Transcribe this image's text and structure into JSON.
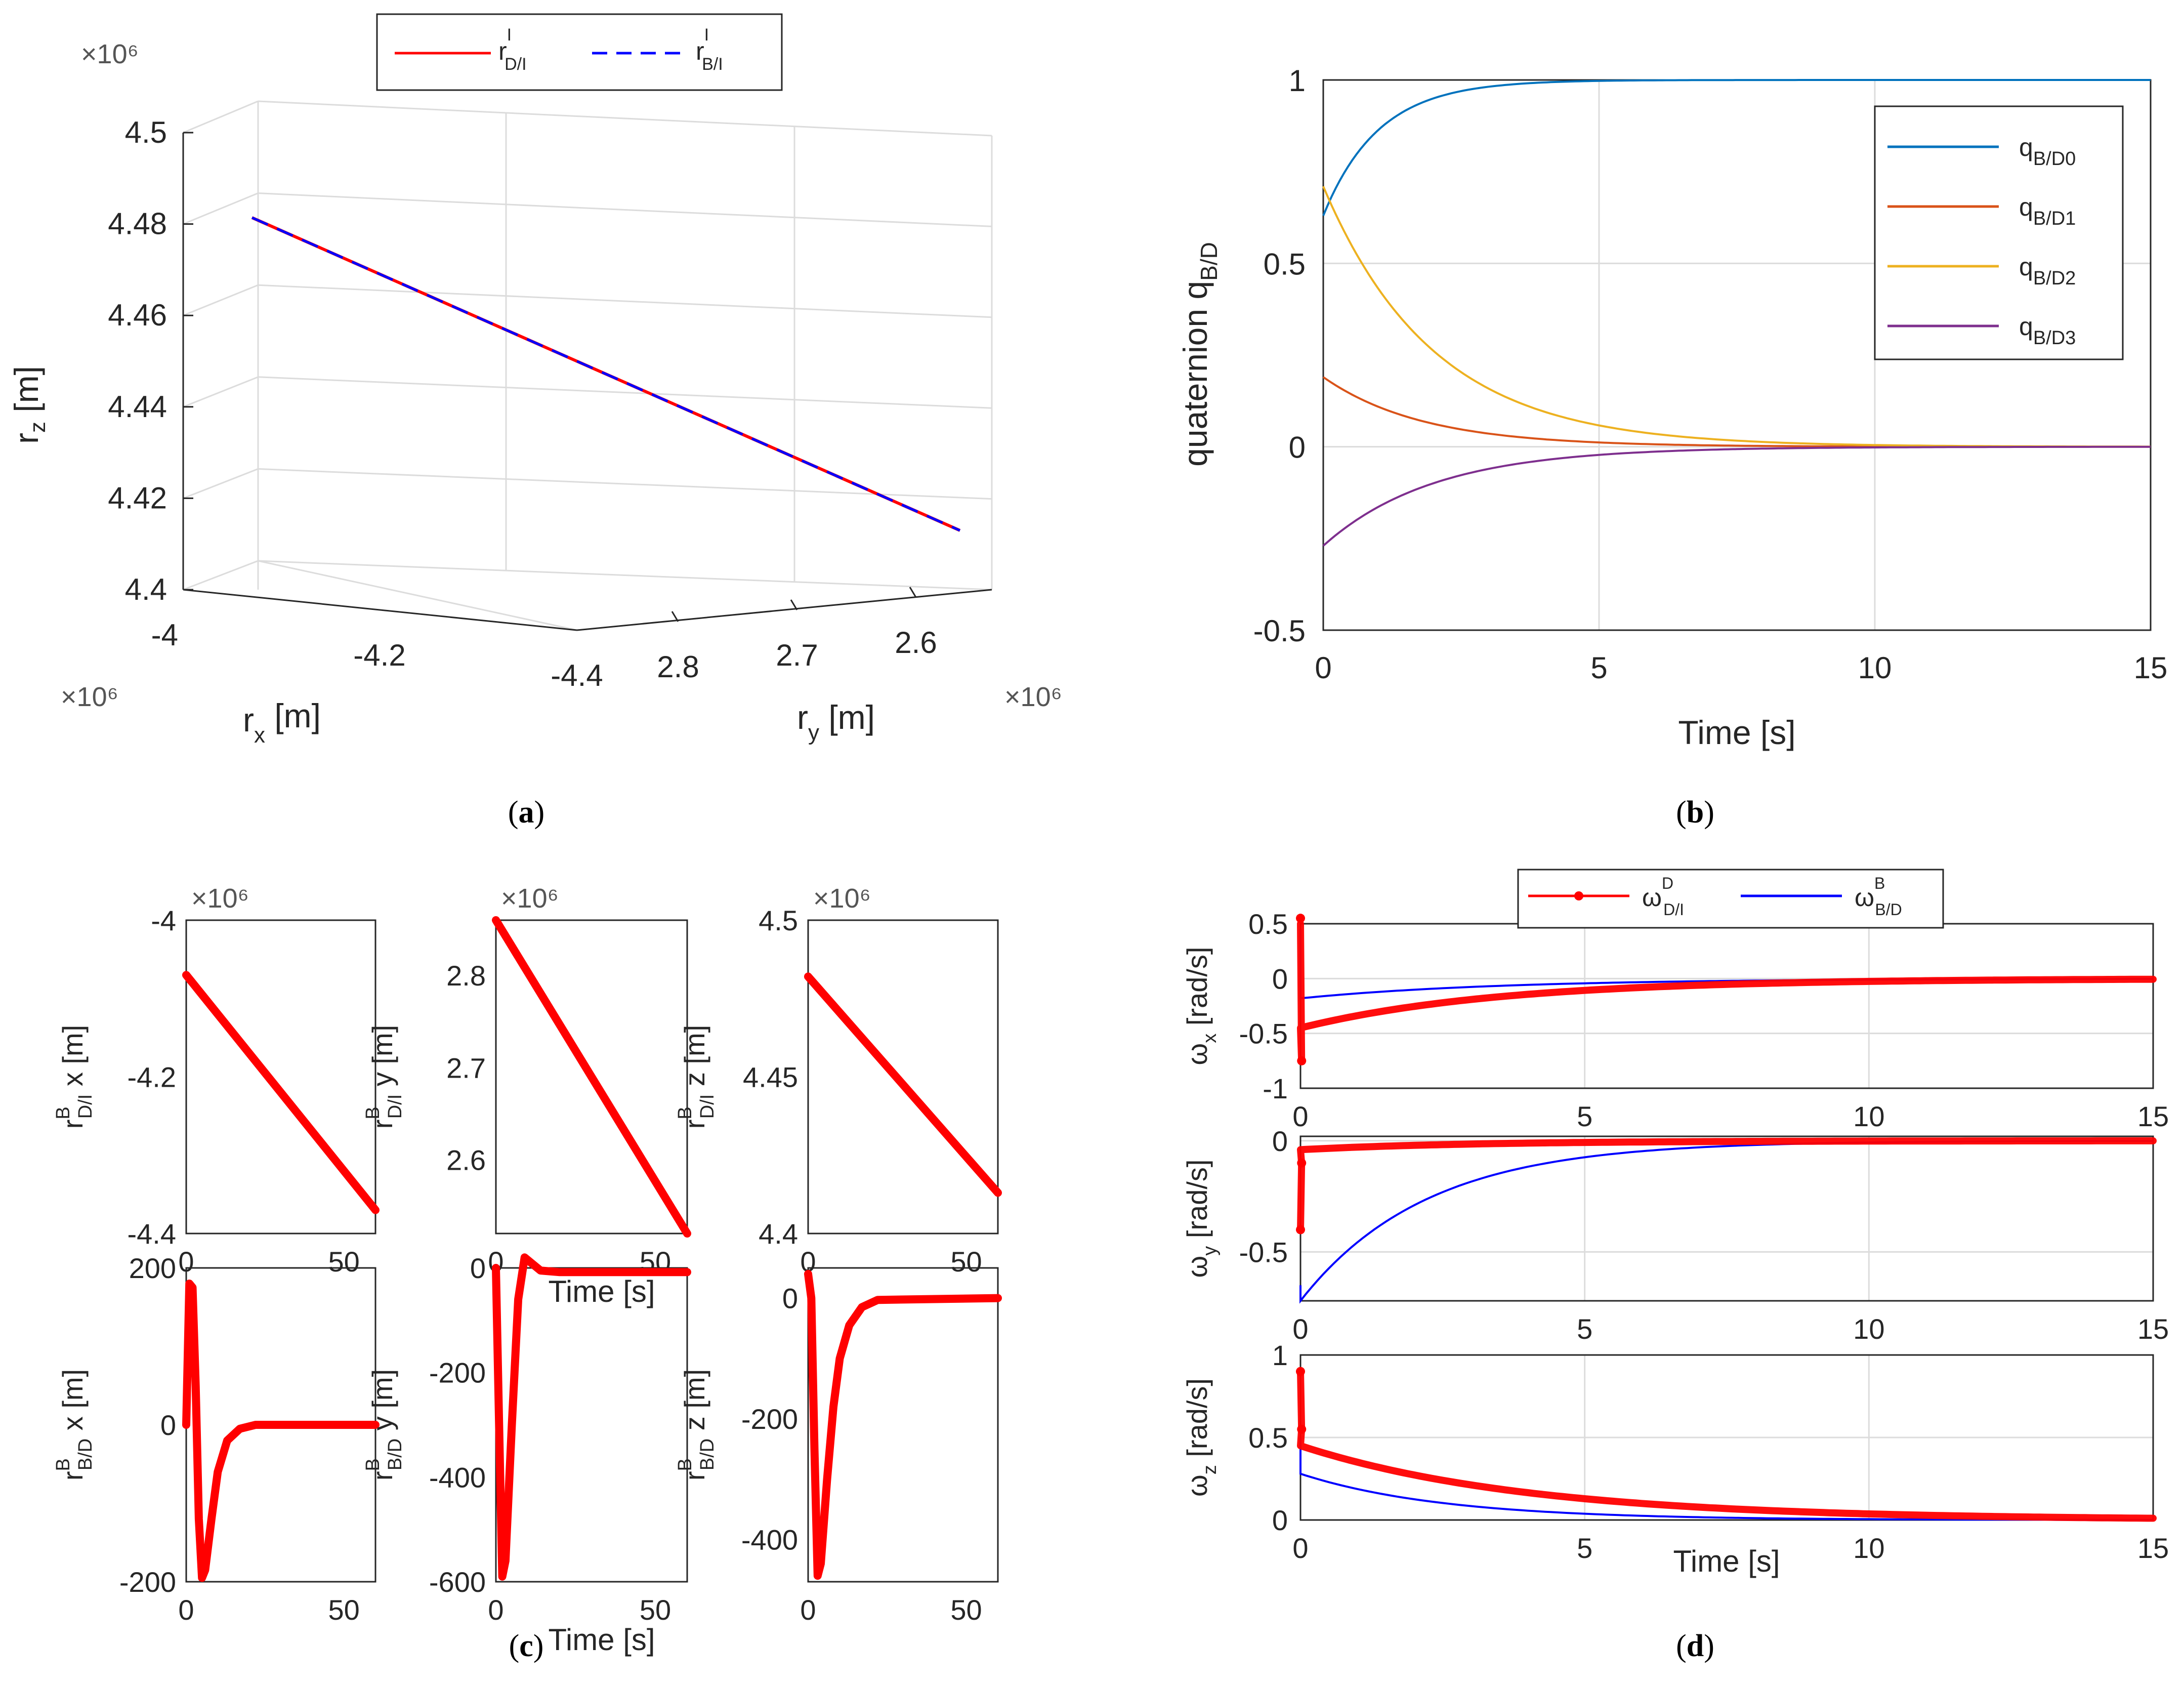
{
  "chart_data": [
    {
      "id": "a",
      "type": "line3d",
      "caption": "a",
      "multipliers": {
        "x": "×10⁶",
        "y": "×10⁶",
        "z": "×10⁶"
      },
      "xlabel": "r",
      "xlabel_sub": "x",
      "xlabel_unit": "[m]",
      "ylabel": "r",
      "ylabel_sub": "y",
      "ylabel_unit": "[m]",
      "zlabel": "r",
      "zlabel_sub": "z",
      "zlabel_unit": "[m]",
      "x_ticks": [
        "-4",
        "-4.2",
        "-4.4"
      ],
      "y_ticks": [
        "2.8",
        "2.7",
        "2.6"
      ],
      "z_ticks": [
        "4.5",
        "4.48",
        "4.46",
        "4.44",
        "4.42",
        "4.4"
      ],
      "xlim": [
        -4.4,
        -4.0
      ],
      "ylim": [
        2.55,
        2.85
      ],
      "zlim": [
        4.4,
        4.5
      ],
      "legend": [
        {
          "name": "r",
          "sup": "I",
          "sub": "D/I",
          "color": "#ff0000",
          "style": "solid"
        },
        {
          "name": "r",
          "sup": "I",
          "sub": "B/I",
          "color": "#0000ff",
          "style": "dashed"
        }
      ],
      "series": [
        {
          "name": "r_D/I",
          "x": [
            -4.06,
            -4.37
          ],
          "y": [
            2.86,
            2.52
          ],
          "z": [
            4.482,
            4.413
          ]
        }
      ]
    },
    {
      "id": "b",
      "type": "line",
      "caption": "b",
      "xlabel": "Time [s]",
      "ylabel": "quaternion q",
      "ylabel_sub": "B/D",
      "xlim": [
        0,
        15
      ],
      "ylim": [
        -0.5,
        1
      ],
      "x_ticks": [
        "0",
        "5",
        "10",
        "15"
      ],
      "y_ticks": [
        "-0.5",
        "0",
        "0.5",
        "1"
      ],
      "legend_location": "top-right",
      "series": [
        {
          "name": "q",
          "sub": "B/D0",
          "color": "#0072bd",
          "start": 0.63,
          "end": 1.0,
          "tau": 1.0
        },
        {
          "name": "q",
          "sub": "B/D1",
          "color": "#d95319",
          "start": 0.19,
          "end": 0.0,
          "tau": 1.8
        },
        {
          "name": "q",
          "sub": "B/D2",
          "color": "#edb120",
          "start": 0.71,
          "end": 0.0,
          "tau": 2.0
        },
        {
          "name": "q",
          "sub": "B/D3",
          "color": "#7e2f8e",
          "start": -0.27,
          "end": 0.0,
          "tau": 2.0
        }
      ]
    },
    {
      "id": "c",
      "type": "line",
      "caption": "c",
      "subplots": [
        {
          "ylabel": "r",
          "ysup": "B",
          "ysub": "D/I",
          "yvar": "x [m]",
          "xlim": [
            0,
            60
          ],
          "ylim": [
            -4.4,
            -4.0
          ],
          "x_ticks": [
            "0",
            "50"
          ],
          "y_ticks": [
            "-4",
            "-4.2",
            "-4.4"
          ],
          "multiplier": "×10⁶",
          "xlabel": "",
          "curve": "linear",
          "values": [
            -4.07,
            -4.37
          ]
        },
        {
          "ylabel": "r",
          "ysup": "B",
          "ysub": "D/I",
          "yvar": "y [m]",
          "xlim": [
            0,
            60
          ],
          "ylim": [
            2.52,
            2.86
          ],
          "x_ticks": [
            "0",
            "50"
          ],
          "y_ticks": [
            "2.8",
            "2.7",
            "2.6"
          ],
          "multiplier": "×10⁶",
          "xlabel": "Time [s]",
          "curve": "linear",
          "values": [
            2.86,
            2.52
          ]
        },
        {
          "ylabel": "r",
          "ysup": "B",
          "ysub": "D/I",
          "yvar": "z [m]",
          "xlim": [
            0,
            60
          ],
          "ylim": [
            4.4,
            4.5
          ],
          "x_ticks": [
            "0",
            "50"
          ],
          "y_ticks": [
            "4.5",
            "4.45",
            "4.4"
          ],
          "multiplier": "×10⁶",
          "xlabel": "",
          "curve": "linear",
          "values": [
            4.482,
            4.413
          ]
        },
        {
          "ylabel": "r",
          "ysup": "B",
          "ysub": "B/D",
          "yvar": "x [m]",
          "xlim": [
            0,
            60
          ],
          "ylim": [
            -200,
            200
          ],
          "x_ticks": [
            "0",
            "50"
          ],
          "y_ticks": [
            "200",
            "0",
            "-200"
          ],
          "multiplier": "",
          "xlabel": "",
          "curve": "transient",
          "points": [
            [
              0,
              0
            ],
            [
              1,
              180
            ],
            [
              2,
              175
            ],
            [
              3,
              50
            ],
            [
              4,
              -120
            ],
            [
              5,
              -195
            ],
            [
              6,
              -185
            ],
            [
              8,
              -120
            ],
            [
              10,
              -60
            ],
            [
              13,
              -20
            ],
            [
              17,
              -5
            ],
            [
              22,
              0
            ],
            [
              60,
              0
            ]
          ]
        },
        {
          "ylabel": "r",
          "ysup": "B",
          "ysub": "B/D",
          "yvar": "y [m]",
          "xlim": [
            0,
            60
          ],
          "ylim": [
            -600,
            0
          ],
          "x_ticks": [
            "0",
            "50"
          ],
          "y_ticks": [
            "0",
            "-200",
            "-400",
            "-600"
          ],
          "multiplier": "",
          "xlabel": "Time [s]",
          "curve": "transient",
          "points": [
            [
              0,
              0
            ],
            [
              1,
              -300
            ],
            [
              2,
              -590
            ],
            [
              3,
              -560
            ],
            [
              5,
              -300
            ],
            [
              7,
              -60
            ],
            [
              9,
              20
            ],
            [
              11,
              10
            ],
            [
              14,
              -5
            ],
            [
              20,
              -8
            ],
            [
              60,
              -8
            ]
          ]
        },
        {
          "ylabel": "r",
          "ysup": "B",
          "ysub": "B/D",
          "yvar": "z [m]",
          "xlim": [
            0,
            60
          ],
          "ylim": [
            -470,
            50
          ],
          "x_ticks": [
            "0",
            "50"
          ],
          "y_ticks": [
            "0",
            "-200",
            "-400"
          ],
          "multiplier": "",
          "xlabel": "",
          "curve": "transient",
          "points": [
            [
              0,
              40
            ],
            [
              1,
              0
            ],
            [
              2,
              -250
            ],
            [
              3,
              -460
            ],
            [
              4,
              -440
            ],
            [
              6,
              -300
            ],
            [
              8,
              -180
            ],
            [
              10,
              -100
            ],
            [
              13,
              -45
            ],
            [
              17,
              -15
            ],
            [
              22,
              -3
            ],
            [
              60,
              0
            ]
          ]
        }
      ]
    },
    {
      "id": "d",
      "type": "line",
      "caption": "d",
      "legend": [
        {
          "name": "ω",
          "sup": "D",
          "sub": "D/I",
          "color": "#ff0000"
        },
        {
          "name": "ω",
          "sup": "B",
          "sub": "B/D",
          "color": "#0000ff"
        }
      ],
      "xlabel": "Time [s]",
      "subplots": [
        {
          "ylabel": "ω",
          "ysub": "x",
          "yunit": "[rad/s]",
          "xlim": [
            0,
            15
          ],
          "ylim": [
            -1,
            0.5
          ],
          "x_ticks": [
            "0",
            "5",
            "10",
            "15"
          ],
          "y_ticks": [
            "0.5",
            "0",
            "-0.5",
            "-1"
          ],
          "red": {
            "start": -0.45,
            "end": 0.0,
            "tau": 3.5,
            "spike": [
              [
                0,
                0.55
              ],
              [
                0.02,
                -0.75
              ]
            ]
          },
          "blue": {
            "start": -0.18,
            "end": 0.0,
            "tau": 3.5,
            "spike": [
              [
                0,
                0.45
              ]
            ]
          }
        },
        {
          "ylabel": "ω",
          "ysub": "y",
          "yunit": "[rad/s]",
          "xlim": [
            0,
            15
          ],
          "ylim": [
            -0.72,
            0.02
          ],
          "x_ticks": [
            "0",
            "5",
            "10",
            "15"
          ],
          "y_ticks": [
            "0",
            "-0.5"
          ],
          "red": {
            "start": -0.04,
            "end": 0.0,
            "tau": 3.0,
            "spike": [
              [
                0,
                -0.4
              ],
              [
                0.02,
                -0.1
              ]
            ]
          },
          "blue": {
            "start": -0.72,
            "end": 0.0,
            "tau": 2.2,
            "spike": [
              [
                0,
                -0.65
              ]
            ]
          }
        },
        {
          "ylabel": "ω",
          "ysub": "z",
          "yunit": "[rad/s]",
          "xlim": [
            0,
            15
          ],
          "ylim": [
            0,
            1
          ],
          "x_ticks": [
            "0",
            "5",
            "10",
            "15"
          ],
          "y_ticks": [
            "1",
            "0.5",
            "0"
          ],
          "red": {
            "start": 0.45,
            "end": 0.0,
            "tau": 4.0,
            "spike": [
              [
                0,
                0.9
              ],
              [
                0.02,
                0.55
              ]
            ]
          },
          "blue": {
            "start": 0.28,
            "end": 0.0,
            "tau": 2.5,
            "spike": [
              [
                0,
                0.5
              ]
            ]
          }
        }
      ]
    }
  ]
}
